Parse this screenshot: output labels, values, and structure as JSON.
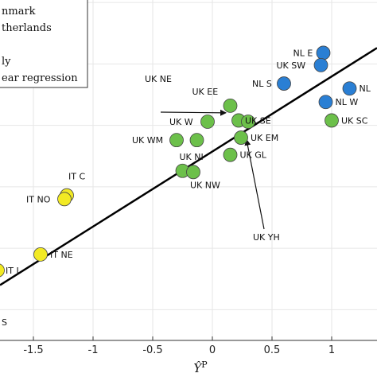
{
  "chart_data": {
    "type": "scatter",
    "xlabel": "Ŷ",
    "xlabel_superscript": "P",
    "xlim": [
      -1.78,
      1.38
    ],
    "ylim": [
      -1.25,
      1.52
    ],
    "x_ticks": [
      -1.5,
      -1,
      -0.5,
      0,
      0.5,
      1
    ],
    "x_tick_labels": [
      "-1.5",
      "-1",
      "-0.5",
      "0",
      "0.5",
      "1"
    ],
    "grid": true,
    "legend_placement": "top-left",
    "legend": [
      {
        "label": "nmark",
        "marker": "circle",
        "color": "#2a7fd4"
      },
      {
        "label": "therlands",
        "marker": "circle",
        "color": "#2a7fd4"
      },
      {
        "label": "",
        "marker": "circle",
        "color": "#6cc04a"
      },
      {
        "label": "ly",
        "marker": "circle",
        "color": "#f2ea24"
      },
      {
        "label": "ear regression",
        "marker": "line",
        "color": "#000000"
      }
    ],
    "regression": {
      "x": [
        -1.78,
        1.38
      ],
      "y": [
        -0.8,
        1.13
      ]
    },
    "series": [
      {
        "color": "#2a7fd4",
        "points": [
          {
            "x": 0.93,
            "y": 1.09,
            "label": "NL E"
          },
          {
            "x": 0.91,
            "y": 0.99,
            "label": "UK SW"
          },
          {
            "x": 0.6,
            "y": 0.84,
            "label": "NL S"
          },
          {
            "x": 1.15,
            "y": 0.8,
            "label": "NL"
          },
          {
            "x": 0.95,
            "y": 0.69,
            "label": "NL W"
          }
        ]
      },
      {
        "color": "#6cc04a",
        "points": [
          {
            "x": 0.15,
            "y": 0.66,
            "label": "UK EE"
          },
          {
            "x": 0.22,
            "y": 0.54,
            "label": "UK SE"
          },
          {
            "x": 0.3,
            "y": 0.53,
            "label": "UK NE"
          },
          {
            "x": 1.0,
            "y": 0.54,
            "label": "UK SC"
          },
          {
            "x": -0.04,
            "y": 0.53,
            "label": "UK W"
          },
          {
            "x": -0.3,
            "y": 0.38,
            "label": "UK WM"
          },
          {
            "x": -0.13,
            "y": 0.38,
            "label": ""
          },
          {
            "x": 0.24,
            "y": 0.4,
            "label": "UK EM"
          },
          {
            "x": 0.15,
            "y": 0.26,
            "label": "UK GL"
          },
          {
            "x": -0.25,
            "y": 0.13,
            "label": "UK NI"
          },
          {
            "x": -0.16,
            "y": 0.12,
            "label": "UK NW"
          }
        ]
      },
      {
        "color": "#f2ea24",
        "points": [
          {
            "x": -1.22,
            "y": -0.07,
            "label": "IT C"
          },
          {
            "x": -1.24,
            "y": -0.1,
            "label": "IT NO"
          },
          {
            "x": -1.44,
            "y": -0.55,
            "label": "IT NE"
          },
          {
            "x": -1.8,
            "y": -0.68,
            "label": "IT I"
          }
        ]
      }
    ],
    "annotations": [
      {
        "text": "UK NE",
        "arrow_to": {
          "x": 0.14,
          "y": 0.55
        }
      },
      {
        "text": "UK YH",
        "arrow_to": {
          "x": 0.26,
          "y": 0.46
        }
      }
    ],
    "clipped_label": "S"
  }
}
